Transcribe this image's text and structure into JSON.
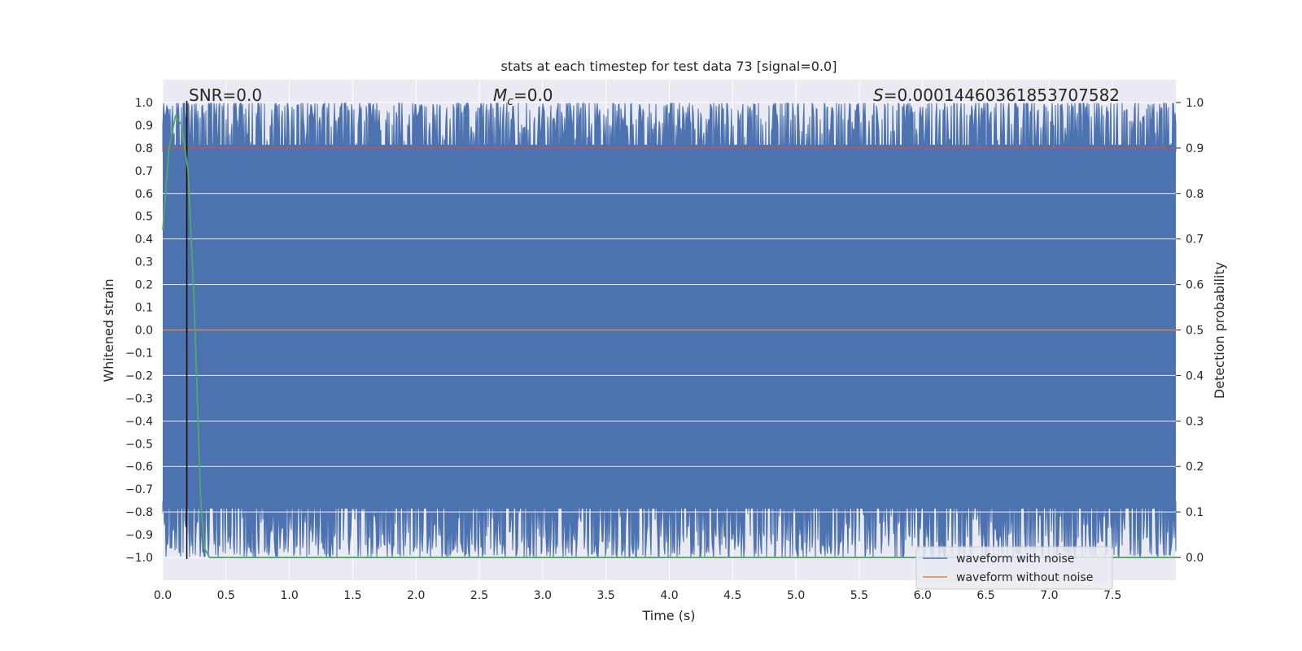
{
  "chart_data": {
    "type": "line",
    "title": "stats at each timestep for test data 73 [signal=0.0]",
    "xlabel": "Time (s)",
    "ylabel": "Whitened strain",
    "y2label": "Detection probability",
    "xlim": [
      0.0,
      8.0
    ],
    "ylim": [
      -1.1,
      1.1
    ],
    "y2lim": [
      -0.05,
      1.05
    ],
    "xticks": [
      0.0,
      0.5,
      1.0,
      1.5,
      2.0,
      2.5,
      3.0,
      3.5,
      4.0,
      4.5,
      5.0,
      5.5,
      6.0,
      6.5,
      7.0,
      7.5
    ],
    "xtick_labels": [
      "0.0",
      "0.5",
      "1.0",
      "1.5",
      "2.0",
      "2.5",
      "3.0",
      "3.5",
      "4.0",
      "4.5",
      "5.0",
      "5.5",
      "6.0",
      "6.5",
      "7.0",
      "7.5"
    ],
    "yticks": [
      1.0,
      0.9,
      0.8,
      0.7,
      0.6,
      0.5,
      0.4,
      0.3,
      0.2,
      0.1,
      0.0,
      -0.1,
      -0.2,
      -0.3,
      -0.4,
      -0.5,
      -0.6,
      -0.7,
      -0.8,
      -0.9,
      -1.0
    ],
    "ytick_labels": [
      "1.0",
      "0.9",
      "0.8",
      "0.7",
      "0.6",
      "0.5",
      "0.4",
      "0.3",
      "0.2",
      "0.1",
      "0.0",
      "−0.1",
      "−0.2",
      "−0.3",
      "−0.4",
      "−0.5",
      "−0.6",
      "−0.7",
      "−0.8",
      "−0.9",
      "−1.0"
    ],
    "y2ticks": [
      1.0,
      0.9,
      0.8,
      0.7,
      0.6,
      0.5,
      0.4,
      0.3,
      0.2,
      0.1,
      0.0
    ],
    "y2tick_labels": [
      "1.0",
      "0.9",
      "0.8",
      "0.7",
      "0.6",
      "0.5",
      "0.4",
      "0.3",
      "0.2",
      "0.1",
      "0.0"
    ],
    "grid": true,
    "series": [
      {
        "name": "waveform with noise",
        "color": "#4c72b0",
        "axis": "left",
        "description": "dense noisy whitened strain filling roughly -1.0 to 1.0 over the full 0-8 s range",
        "envelope_upper": 1.0,
        "envelope_lower": -1.0
      },
      {
        "name": "waveform without noise",
        "color": "#dd8452",
        "axis": "left",
        "x": [
          0.0,
          8.0
        ],
        "y": [
          0.0,
          0.0
        ]
      },
      {
        "name": "detection probability",
        "color": "#55a868",
        "axis": "right",
        "x": [
          0.0,
          0.05,
          0.1,
          0.15,
          0.2,
          0.25,
          0.3,
          0.33,
          0.37,
          0.5,
          1.0,
          2.0,
          4.0,
          6.0,
          8.0
        ],
        "y": [
          0.72,
          0.9,
          0.97,
          0.95,
          0.85,
          0.55,
          0.12,
          0.02,
          0.0,
          0.0,
          0.0,
          0.0,
          0.0,
          0.0,
          0.0
        ]
      }
    ],
    "hlines": [
      {
        "axis": "right",
        "y": 0.9,
        "color": "#c44e52"
      }
    ],
    "vlines": [
      {
        "x": 0.19,
        "color": "#000000"
      }
    ],
    "annotations": {
      "snr": "SNR=0.0",
      "mc_symbol": "M",
      "mc_sub": "c",
      "mc_value": "=0.0",
      "s_symbol": "S",
      "s_value": "=0.00014460361853707582"
    },
    "legend": {
      "placement": "lower-right",
      "entries": [
        "waveform with noise",
        "waveform without noise"
      ]
    },
    "colors": {
      "axes_bg": "#eaeaf2",
      "grid": "#ffffff",
      "text": "#262626"
    }
  }
}
